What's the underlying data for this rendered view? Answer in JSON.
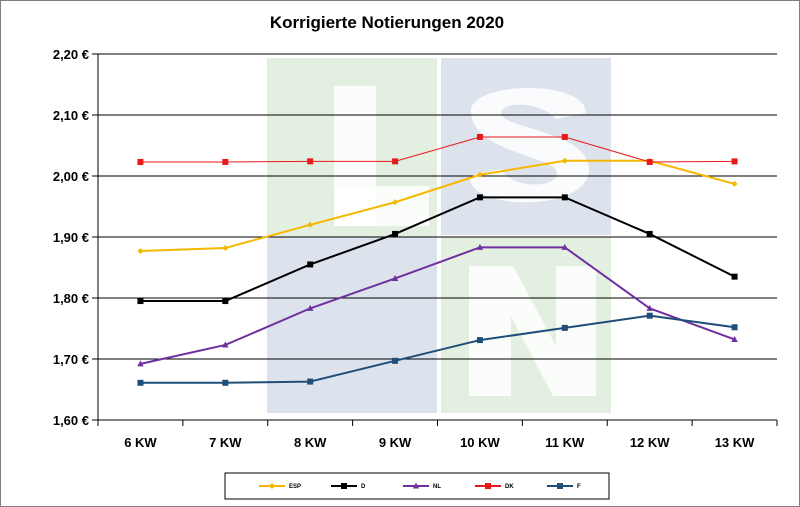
{
  "chart_data": {
    "type": "line",
    "title": "Korrigierte Notierungen 2020",
    "categories": [
      "6 KW",
      "7 KW",
      "8 KW",
      "9 KW",
      "10 KW",
      "11 KW",
      "12 KW",
      "13 KW"
    ],
    "ylim": [
      1.6,
      2.2
    ],
    "yticks": [
      "1,60 €",
      "1,70 €",
      "1,80 €",
      "1,90 €",
      "2,00 €",
      "2,10 €",
      "2,20 €"
    ],
    "grid": "horizontal",
    "legend_position": "bottom",
    "series": [
      {
        "name": "ESP",
        "color": "#f5b800",
        "marker": "diamond",
        "values": [
          1.877,
          1.882,
          1.92,
          1.957,
          2.002,
          2.025,
          2.025,
          1.987
        ]
      },
      {
        "name": "D",
        "color": "#000000",
        "marker": "square",
        "values": [
          1.795,
          1.795,
          1.855,
          1.905,
          1.965,
          1.965,
          1.905,
          1.835
        ]
      },
      {
        "name": "NL",
        "color": "#7030a0",
        "marker": "triangle",
        "values": [
          1.692,
          1.723,
          1.783,
          1.832,
          1.883,
          1.883,
          1.783,
          1.732
        ]
      },
      {
        "name": "DK",
        "color": "#e8191a",
        "marker": "square",
        "values": [
          2.023,
          2.023,
          2.024,
          2.024,
          2.064,
          2.064,
          2.023,
          2.024
        ]
      },
      {
        "name": "F",
        "color": "#1f4e79",
        "marker": "square",
        "values": [
          1.661,
          1.661,
          1.663,
          1.697,
          1.731,
          1.751,
          1.771,
          1.752
        ]
      }
    ]
  }
}
